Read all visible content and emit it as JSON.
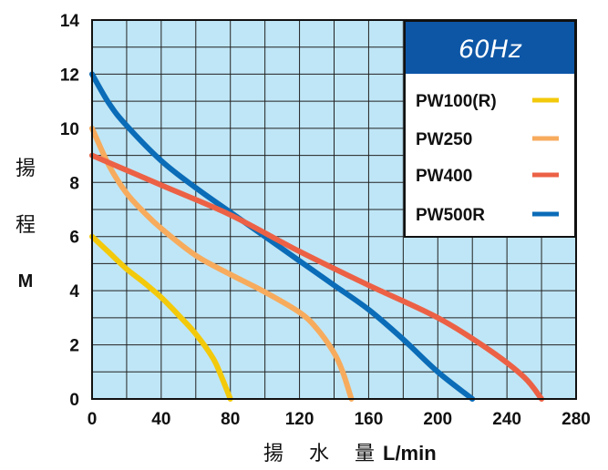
{
  "chart_data": {
    "type": "line",
    "title": "",
    "xlabel_chars": [
      "揚",
      "水",
      "量"
    ],
    "xlabel_unit": "L/min",
    "ylabel_chars": [
      "揚",
      "程"
    ],
    "ylabel_unit": "M",
    "xlim": [
      0,
      280
    ],
    "ylim": [
      0,
      14
    ],
    "xticks": [
      0,
      40,
      80,
      120,
      160,
      200,
      240,
      280
    ],
    "yticks": [
      0,
      2,
      4,
      6,
      8,
      10,
      12,
      14
    ],
    "grid": true,
    "plot_bg": "#bfe6f6",
    "legend": {
      "position": "top-right",
      "header": "60Hz",
      "header_bg": "#0d56a6"
    },
    "series": [
      {
        "name": "PW100(R)",
        "color": "#f3c90b",
        "points": [
          [
            0,
            6
          ],
          [
            10,
            5.4
          ],
          [
            20,
            4.8
          ],
          [
            30,
            4.3
          ],
          [
            40,
            3.75
          ],
          [
            50,
            3.1
          ],
          [
            60,
            2.4
          ],
          [
            70,
            1.5
          ],
          [
            75,
            0.8
          ],
          [
            80,
            0
          ]
        ]
      },
      {
        "name": "PW250",
        "color": "#f7ab5d",
        "points": [
          [
            0,
            10
          ],
          [
            10,
            8.6
          ],
          [
            20,
            7.6
          ],
          [
            30,
            6.9
          ],
          [
            40,
            6.3
          ],
          [
            60,
            5.3
          ],
          [
            80,
            4.6
          ],
          [
            100,
            3.95
          ],
          [
            120,
            3.2
          ],
          [
            130,
            2.6
          ],
          [
            140,
            1.7
          ],
          [
            145,
            1.0
          ],
          [
            150,
            0
          ]
        ]
      },
      {
        "name": "PW400",
        "color": "#ec6145",
        "points": [
          [
            0,
            9
          ],
          [
            40,
            7.9
          ],
          [
            80,
            6.8
          ],
          [
            120,
            5.45
          ],
          [
            160,
            4.2
          ],
          [
            200,
            3.0
          ],
          [
            230,
            1.8
          ],
          [
            250,
            0.8
          ],
          [
            260,
            0
          ]
        ]
      },
      {
        "name": "PW500R",
        "color": "#0b6cb8",
        "points": [
          [
            0,
            12
          ],
          [
            10,
            10.9
          ],
          [
            20,
            10.1
          ],
          [
            40,
            8.8
          ],
          [
            60,
            7.8
          ],
          [
            80,
            6.9
          ],
          [
            100,
            6.0
          ],
          [
            120,
            5.1
          ],
          [
            140,
            4.2
          ],
          [
            160,
            3.3
          ],
          [
            180,
            2.2
          ],
          [
            200,
            1.0
          ],
          [
            220,
            0
          ]
        ]
      }
    ]
  }
}
